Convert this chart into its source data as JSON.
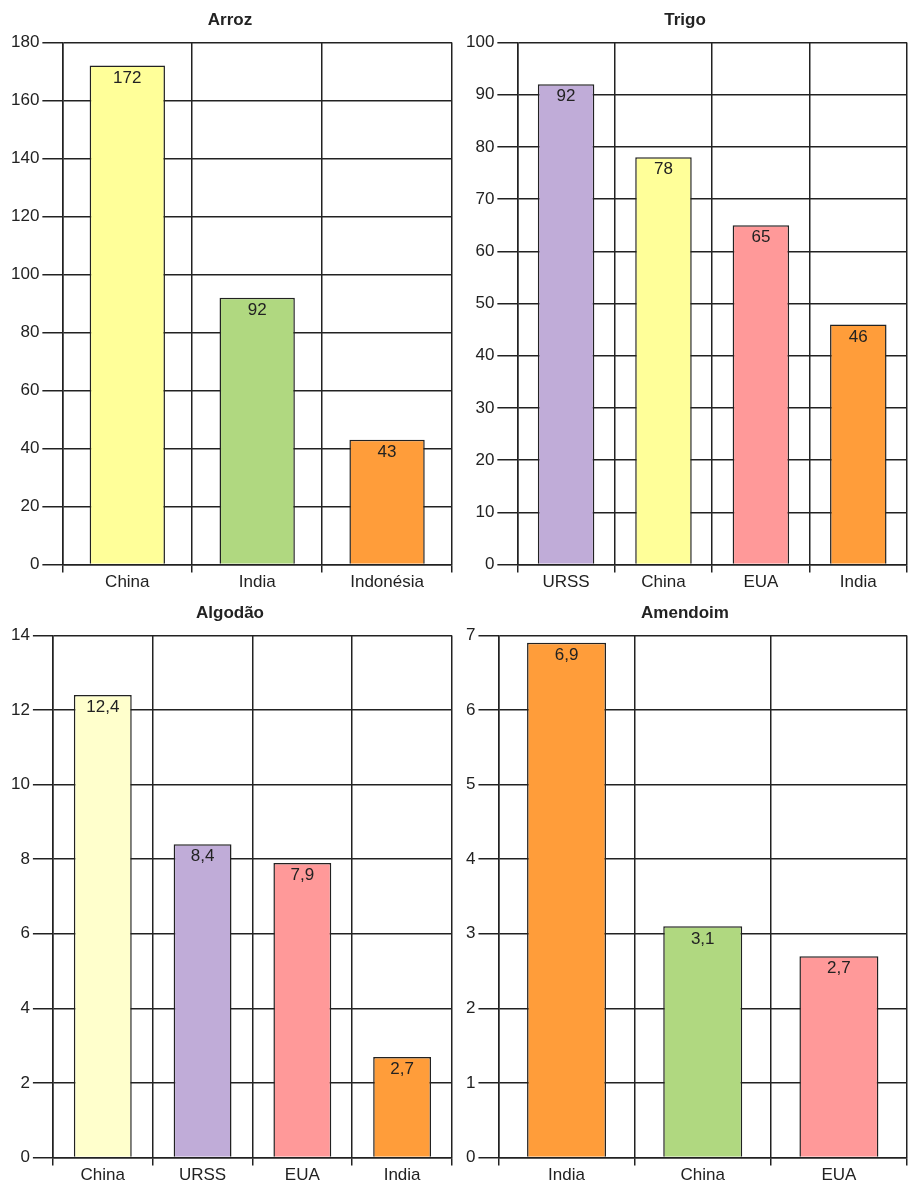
{
  "chart_data": [
    {
      "type": "bar",
      "title": "Arroz",
      "categories": [
        "China",
        "India",
        "Indonésia"
      ],
      "values": [
        172,
        92,
        43
      ],
      "colors": [
        "#ffff99",
        "#b0d880",
        "#ff9d3a"
      ],
      "value_labels": [
        "172",
        "92",
        "43"
      ],
      "ylim": [
        0,
        180
      ],
      "yticks": [
        0,
        20,
        40,
        60,
        80,
        100,
        120,
        140,
        160,
        180
      ],
      "grid": true
    },
    {
      "type": "bar",
      "title": "Trigo",
      "categories": [
        "URSS",
        "China",
        "EUA",
        "India"
      ],
      "values": [
        92,
        78,
        65,
        46
      ],
      "colors": [
        "#c0acd8",
        "#ffff99",
        "#ff9999",
        "#ff9d3a"
      ],
      "value_labels": [
        "92",
        "78",
        "65",
        "46"
      ],
      "ylim": [
        0,
        100
      ],
      "yticks": [
        0,
        10,
        20,
        30,
        40,
        50,
        60,
        70,
        80,
        90,
        100
      ],
      "grid": true
    },
    {
      "type": "bar",
      "title": "Algodão",
      "categories": [
        "China",
        "URSS",
        "EUA",
        "India"
      ],
      "values": [
        12.4,
        8.4,
        7.9,
        2.7
      ],
      "colors": [
        "#ffffcc",
        "#c0acd8",
        "#ff9999",
        "#ff9d3a"
      ],
      "value_labels": [
        "12,4",
        "8,4",
        "7,9",
        "2,7"
      ],
      "ylim": [
        0,
        14
      ],
      "yticks": [
        0,
        2,
        4,
        6,
        8,
        10,
        12,
        14
      ],
      "grid": true
    },
    {
      "type": "bar",
      "title": "Amendoim",
      "categories": [
        "India",
        "China",
        "EUA"
      ],
      "values": [
        6.9,
        3.1,
        2.7
      ],
      "colors": [
        "#ff9d3a",
        "#b0d880",
        "#ff9999"
      ],
      "value_labels": [
        "6,9",
        "3,1",
        "2,7"
      ],
      "ylim": [
        0,
        7
      ],
      "yticks": [
        0,
        1,
        2,
        3,
        4,
        5,
        6,
        7
      ],
      "grid": true
    }
  ]
}
